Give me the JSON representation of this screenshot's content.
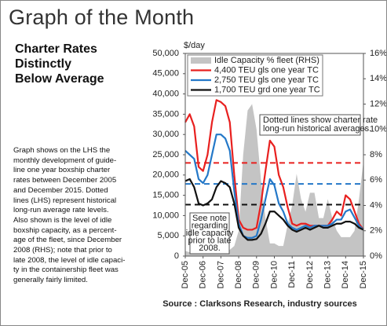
{
  "header": {
    "title": "Graph of the Month"
  },
  "sidebar": {
    "subtitle": "Charter Rates Distinctly Below Average",
    "body_lines": [
      "Graph shows on the LHS the",
      "monthly development of guide-",
      "line one year boxship charter",
      "rates between December 2005",
      "and December 2015. Dotted",
      "lines (LHS) represent historical",
      "long-run average rate levels.",
      "Also shown is the level of idle",
      "boxship capacity, as a percent-",
      "age of the fleet, since December",
      "2008 (RHS); note that prior to",
      "late 2008, the level of idle capaci-",
      "ty in the containership fleet was",
      "generally fairly limited."
    ]
  },
  "chart_data": {
    "type": "line",
    "y_label": "$/day",
    "source": "Source : Clarksons Research, industry sources",
    "categories": [
      "Dec-05",
      null,
      null,
      null,
      "Dec-06",
      null,
      null,
      null,
      "Dec-07",
      null,
      null,
      null,
      "Dec-08",
      null,
      null,
      null,
      "Dec-09",
      null,
      null,
      null,
      "Dec-10",
      null,
      null,
      null,
      "Dec-11",
      null,
      null,
      null,
      "Dec-12",
      null,
      null,
      null,
      "Dec-13",
      null,
      null,
      null,
      "Dec-14",
      null,
      null,
      null,
      "Dec-15"
    ],
    "series": [
      {
        "name": "Idle Capacity % fleet (RHS)",
        "color": "#c4c4c4",
        "axis": "y2",
        "style": "area",
        "values": [
          0.4,
          0.3,
          0.3,
          0.4,
          0.5,
          0.4,
          0.3,
          0.3,
          0.4,
          0.4,
          0.5,
          0.8,
          2,
          8,
          11.5,
          12,
          10,
          6,
          3,
          1,
          1,
          0.8,
          0.8,
          2.5,
          4,
          6.5,
          4.5,
          3.5,
          5,
          5,
          3,
          3,
          4.5,
          3,
          2,
          1.5,
          1.5,
          1.5,
          2,
          4.5,
          7.5
        ]
      },
      {
        "name": "4,400 TEU gls one year TC",
        "color": "#e8201f",
        "values": [
          33000,
          35000,
          32000,
          22000,
          21000,
          25000,
          33000,
          38500,
          38000,
          37000,
          33000,
          20000,
          9000,
          7000,
          6500,
          6500,
          7000,
          13000,
          21000,
          28500,
          27000,
          20000,
          17000,
          12000,
          8000,
          7500,
          8000,
          8000,
          7500,
          7500,
          7500,
          7500,
          7500,
          9000,
          11000,
          10000,
          15000,
          14000,
          11000,
          8000,
          6500
        ]
      },
      {
        "name": "2,750 TEU gls one year TC",
        "color": "#2478c8",
        "values": [
          26000,
          25000,
          24000,
          19000,
          18000,
          20000,
          25000,
          30000,
          30000,
          29000,
          26000,
          16000,
          8000,
          5000,
          4500,
          4500,
          5000,
          9000,
          14000,
          19000,
          17500,
          13000,
          11000,
          8000,
          7000,
          6500,
          7000,
          7500,
          7000,
          7500,
          7500,
          7500,
          7500,
          8000,
          9000,
          9000,
          11000,
          11500,
          9500,
          7500,
          6500
        ]
      },
      {
        "name": "1,700 TEU grd one year TC",
        "color": "#111111",
        "values": [
          18500,
          19000,
          17000,
          13000,
          12500,
          13000,
          14000,
          17000,
          18500,
          18000,
          17000,
          13000,
          7000,
          5000,
          4000,
          4000,
          4200,
          5500,
          8000,
          11000,
          11000,
          10000,
          9000,
          7500,
          6500,
          6000,
          6500,
          7000,
          6500,
          7000,
          7500,
          7000,
          7000,
          7500,
          8000,
          8000,
          8500,
          8500,
          8000,
          7000,
          6500
        ]
      }
    ],
    "reference_lines": [
      {
        "value": 23000,
        "color": "#e8201f",
        "style": "dashed"
      },
      {
        "value": 17800,
        "color": "#2478c8",
        "style": "dashed"
      },
      {
        "value": 12700,
        "color": "#111111",
        "style": "dashed"
      }
    ],
    "ylim": [
      0,
      50000
    ],
    "yticks": [
      0,
      {
        "value": 5000,
        "label": "5,000"
      },
      {
        "value": 10000,
        "label": "10,000"
      },
      {
        "value": 15000,
        "label": "15,000"
      },
      {
        "value": 20000,
        "label": "20,000"
      },
      {
        "value": 25000,
        "label": "25,000"
      },
      {
        "value": 30000,
        "label": "30,000"
      },
      {
        "value": 35000,
        "label": "35,000"
      },
      {
        "value": 40000,
        "label": "40,000"
      },
      {
        "value": 45000,
        "label": "45,000"
      },
      {
        "value": 50000,
        "label": "50,000"
      }
    ],
    "y2lim": [
      0,
      16
    ],
    "y2ticks": [
      {
        "value": 0,
        "label": "0%"
      },
      {
        "value": 2,
        "label": "2%"
      },
      {
        "value": 4,
        "label": "4%"
      },
      {
        "value": 6,
        "label": "6%"
      },
      {
        "value": 8,
        "label": "8%"
      },
      {
        "value": 10,
        "label": "10%"
      },
      {
        "value": 12,
        "label": "12%"
      },
      {
        "value": 14,
        "label": "14%"
      },
      {
        "value": 16,
        "label": "16%"
      }
    ],
    "grid": false,
    "legend": "top-left",
    "annotations": [
      {
        "lines": [
          "Dotted lines show charter rate",
          "long-run historical averages."
        ]
      },
      {
        "lines": [
          "See note",
          "regarding",
          "idle capacity",
          "prior to late",
          "2008."
        ]
      }
    ]
  }
}
